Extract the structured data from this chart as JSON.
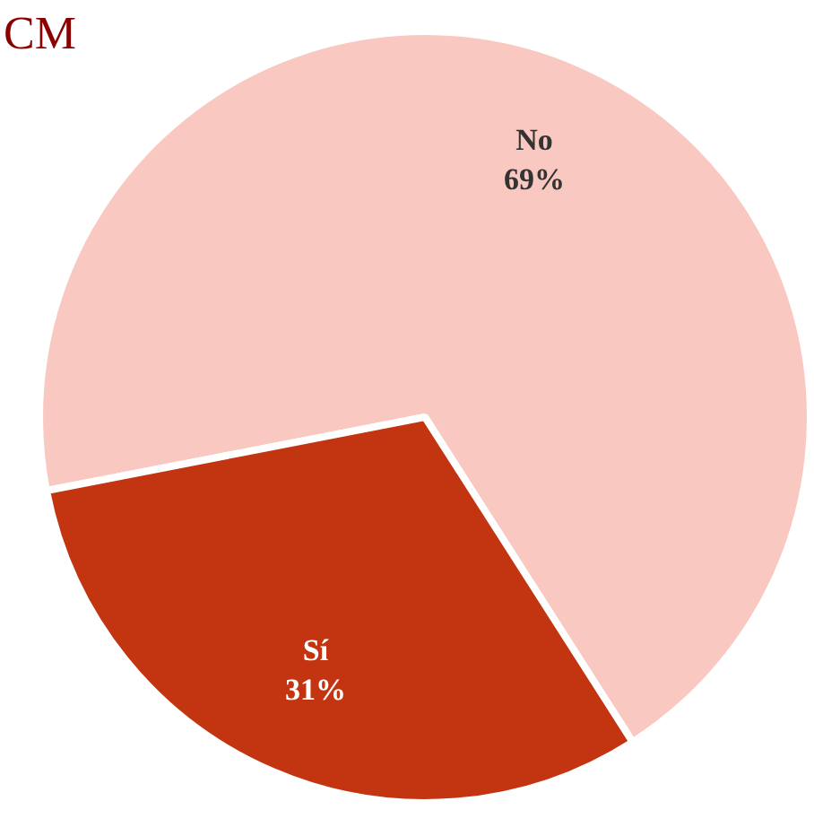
{
  "chart_data": {
    "type": "pie",
    "title": "CM",
    "categories": [
      "No",
      "Sí"
    ],
    "values": [
      69,
      31
    ],
    "colors": [
      "#f9c8c1",
      "#c23510"
    ],
    "value_labels": [
      "69%",
      "31%"
    ],
    "legend": false
  }
}
